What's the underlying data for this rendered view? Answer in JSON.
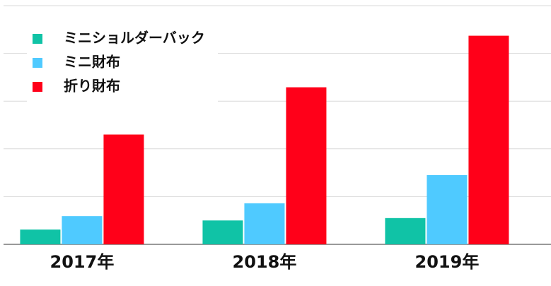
{
  "chart_data": {
    "type": "bar",
    "categories": [
      "2017年",
      "2018年",
      "2019年"
    ],
    "series": [
      {
        "name": "ミニショルダーバック",
        "color": "#10c3a6",
        "values": [
          0.31,
          0.5,
          0.55
        ]
      },
      {
        "name": "ミニ財布",
        "color": "#4fcaff",
        "values": [
          0.59,
          0.86,
          1.45
        ]
      },
      {
        "name": "折り財布",
        "color": "#ff0019",
        "values": [
          2.3,
          3.29,
          4.37
        ]
      }
    ],
    "ylim": [
      0,
      5
    ],
    "yticks": [
      0,
      1,
      2,
      3,
      4,
      5
    ],
    "grid": true,
    "legend": "top-left"
  }
}
